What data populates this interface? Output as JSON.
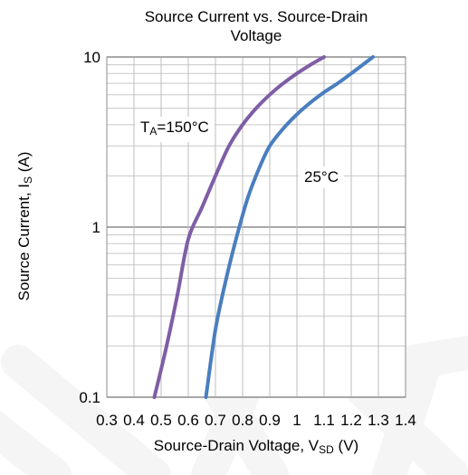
{
  "chart_data": {
    "type": "line",
    "title": [
      "Source Current vs. Source-Drain",
      "Voltage"
    ],
    "xlabel": {
      "text": "Source-Drain Voltage, V",
      "sub": "SD",
      "unit": " (V)"
    },
    "ylabel": {
      "text": "Source Current, I",
      "sub": "S",
      "unit": " (A)"
    },
    "x_scale": "linear",
    "y_scale": "log",
    "xlim": [
      0.3,
      1.4
    ],
    "ylim": [
      0.1,
      10
    ],
    "x_ticks": [
      "0.3",
      "0.4",
      "0.5",
      "0.6",
      "0.7",
      "0.8",
      "0.9",
      "1",
      "1.1",
      "1.2",
      "1.3",
      "1.4"
    ],
    "y_ticks": [
      {
        "value": 10,
        "label": "10"
      },
      {
        "value": 1,
        "label": "1"
      },
      {
        "value": 0.1,
        "label": "0.1"
      }
    ],
    "grid": true,
    "series": [
      {
        "name": "TA=150°C",
        "color": "#7e5ea6",
        "x": [
          0.475,
          0.52,
          0.56,
          0.6,
          0.65,
          0.7,
          0.75,
          0.8,
          0.85,
          0.9,
          0.95,
          1.0,
          1.05,
          1.1
        ],
        "y": [
          0.1,
          0.2,
          0.4,
          0.85,
          1.3,
          2.0,
          3.0,
          4.0,
          5.0,
          6.0,
          7.0,
          8.0,
          9.0,
          10.0
        ]
      },
      {
        "name": "25°C",
        "color": "#4a7ebf",
        "x": [
          0.665,
          0.7,
          0.74,
          0.78,
          0.82,
          0.86,
          0.9,
          0.95,
          1.0,
          1.05,
          1.1,
          1.15,
          1.2,
          1.28
        ],
        "y": [
          0.1,
          0.25,
          0.5,
          0.9,
          1.5,
          2.2,
          3.0,
          3.8,
          4.6,
          5.4,
          6.2,
          7.0,
          8.0,
          10.0
        ]
      }
    ],
    "annotations": [
      {
        "text": "T",
        "sub": "A",
        "rest": "=150°C",
        "series": "TA=150°C"
      },
      {
        "text": "25°C",
        "series": "25°C"
      }
    ]
  }
}
